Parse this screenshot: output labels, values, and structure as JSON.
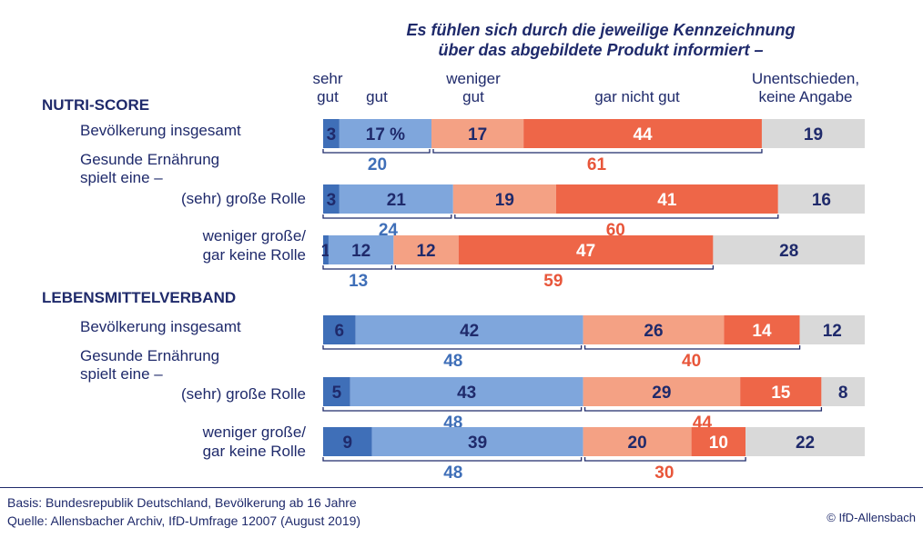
{
  "title_line1": "Es fühlen sich durch die jeweilige Kennzeichnung",
  "title_line2": "über das abgebildete Produkt informiert –",
  "column_headers": {
    "sehr_gut_1": "sehr",
    "sehr_gut_2": "gut",
    "gut": "gut",
    "weniger_gut_1": "weniger",
    "weniger_gut_2": "gut",
    "gar_nicht_gut": "gar nicht gut",
    "unentschieden_1": "Unentschieden,",
    "unentschieden_2": "keine Angabe"
  },
  "sections": {
    "nutri": "NUTRI-SCORE",
    "lmv": "LEBENSMITTELVERBAND"
  },
  "row_labels": {
    "nutri_total": "Bevölkerung insgesamt",
    "nutri_group_1": "Gesunde Ernährung",
    "nutri_group_2": "spielt eine –",
    "nutri_high": "(sehr) große Rolle",
    "nutri_low_1": "weniger große/",
    "nutri_low_2": "gar keine Rolle",
    "lmv_total": "Bevölkerung insgesamt",
    "lmv_group_1": "Gesunde Ernährung",
    "lmv_group_2": "spielt eine –",
    "lmv_high": "(sehr) große Rolle",
    "lmv_low_1": "weniger große/",
    "lmv_low_2": "gar keine Rolle"
  },
  "footer": {
    "basis": "Basis: Bundesrepublik Deutschland, Bevölkerung ab 16 Jahre",
    "quelle": "Quelle: Allensbacher Archiv, IfD-Umfrage 12007 (August 2019)",
    "copyright": "© IfD-Allensbach"
  },
  "colors": {
    "sehr_gut": "#3f6fb8",
    "gut": "#7fa6dc",
    "weniger_gut": "#f4a184",
    "gar_nicht_gut": "#ee6648",
    "unentschieden": "#d9d9d9",
    "positive_sum": "#3f6fb8",
    "negative_sum": "#e8563a",
    "text": "#1f2a6b"
  },
  "chart_data": {
    "type": "bar",
    "orientation": "horizontal",
    "stacked": true,
    "unit": "%",
    "categories": [
      "NUTRI-SCORE – Bevölkerung insgesamt",
      "NUTRI-SCORE – (sehr) große Rolle",
      "NUTRI-SCORE – weniger große/gar keine Rolle",
      "LEBENSMITTELVERBAND – Bevölkerung insgesamt",
      "LEBENSMITTELVERBAND – (sehr) große Rolle",
      "LEBENSMITTELVERBAND – weniger große/gar keine Rolle"
    ],
    "series": [
      {
        "name": "sehr gut",
        "values": [
          3,
          3,
          1,
          6,
          5,
          9
        ]
      },
      {
        "name": "gut",
        "values": [
          17,
          21,
          12,
          42,
          43,
          39
        ]
      },
      {
        "name": "weniger gut",
        "values": [
          17,
          19,
          12,
          26,
          29,
          20
        ]
      },
      {
        "name": "gar nicht gut",
        "values": [
          44,
          41,
          47,
          14,
          15,
          10
        ]
      },
      {
        "name": "Unentschieden, keine Angabe",
        "values": [
          19,
          16,
          28,
          12,
          8,
          22
        ]
      }
    ],
    "value_labels": [
      [
        "3",
        "17 %",
        "17",
        "44",
        "19"
      ],
      [
        "3",
        "21",
        "19",
        "41",
        "16"
      ],
      [
        "1",
        "12",
        "12",
        "47",
        "28"
      ],
      [
        "6",
        "42",
        "26",
        "14",
        "12"
      ],
      [
        "5",
        "43",
        "29",
        "15",
        "8"
      ],
      [
        "9",
        "39",
        "20",
        "10",
        "22"
      ]
    ],
    "positive_sums": [
      20,
      24,
      13,
      48,
      48,
      48
    ],
    "negative_sums": [
      61,
      60,
      59,
      40,
      44,
      30
    ],
    "xlim": [
      0,
      100
    ]
  }
}
